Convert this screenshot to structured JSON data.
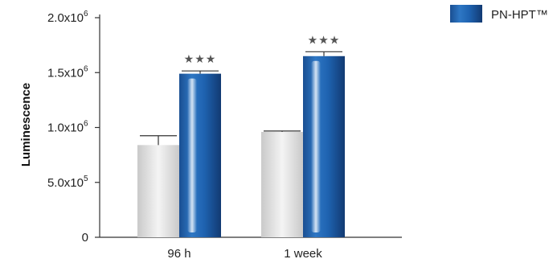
{
  "chart_data": {
    "type": "bar",
    "ylabel": "Luminescence",
    "ylim": [
      0,
      2000000
    ],
    "yticks": [
      {
        "value": 0,
        "label": "0",
        "exp": ""
      },
      {
        "value": 500000,
        "label": "5.0x10",
        "exp": "5"
      },
      {
        "value": 1000000,
        "label": "1.0x10",
        "exp": "6"
      },
      {
        "value": 1500000,
        "label": "1.5x10",
        "exp": "6"
      },
      {
        "value": 2000000,
        "label": "2.0x10",
        "exp": "6"
      }
    ],
    "categories": [
      "96 h",
      "1 week"
    ],
    "series": [
      {
        "values": [
          840000,
          960000
        ],
        "errors": [
          85000,
          8000
        ],
        "color": "#d6d6d6"
      },
      {
        "name": "PN-HPT™",
        "values": [
          1490000,
          1650000
        ],
        "errors": [
          25000,
          40000
        ],
        "color": "#1f5fa8"
      }
    ],
    "significance": [
      "★★★",
      "★★★"
    ],
    "legend": {
      "position": "top-right"
    },
    "grid": false
  }
}
